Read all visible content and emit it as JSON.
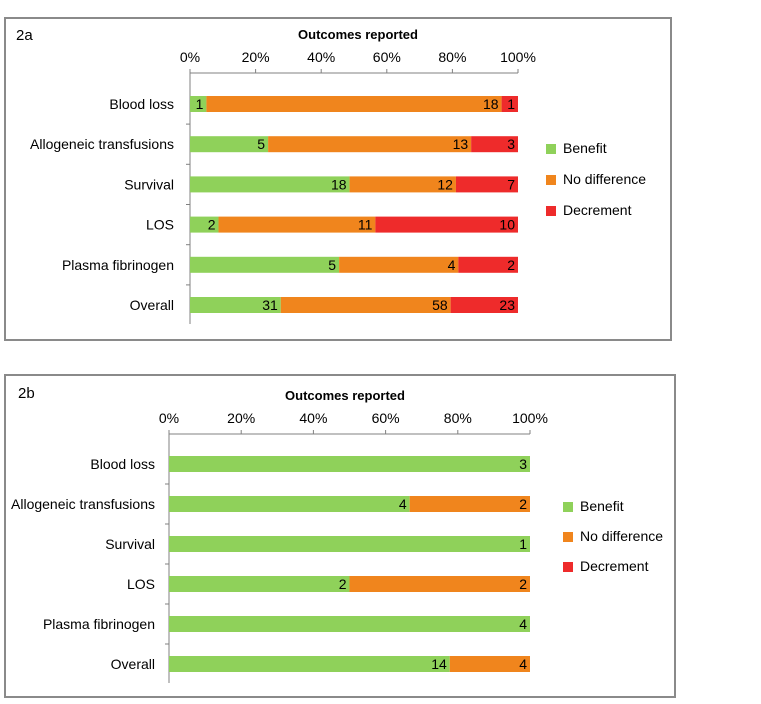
{
  "colors": {
    "benefit": "#8fd15a",
    "no_difference": "#f0851d",
    "decrement": "#ee2b2b"
  },
  "chart_data": [
    {
      "panel_label": "2a",
      "type": "bar",
      "orientation": "horizontal",
      "stacked": "percent",
      "title": "Outcomes reported",
      "x_ticks": [
        "0%",
        "20%",
        "40%",
        "60%",
        "80%",
        "100%"
      ],
      "categories": [
        "Blood loss",
        "Allogeneic transfusions",
        "Survival",
        "LOS",
        "Plasma fibrinogen",
        "Overall"
      ],
      "series": [
        {
          "name": "Benefit",
          "values": [
            1,
            5,
            18,
            2,
            5,
            31
          ],
          "color": "#8fd15a"
        },
        {
          "name": "No difference",
          "values": [
            18,
            13,
            12,
            11,
            4,
            58
          ],
          "color": "#f0851d"
        },
        {
          "name": "Decrement",
          "values": [
            1,
            3,
            7,
            10,
            2,
            23
          ],
          "color": "#ee2b2b"
        }
      ],
      "legend": [
        "Benefit",
        "No difference",
        "Decrement"
      ],
      "legend_position": "right",
      "xlim": [
        0,
        100
      ]
    },
    {
      "panel_label": "2b",
      "type": "bar",
      "orientation": "horizontal",
      "stacked": "percent",
      "title": "Outcomes reported",
      "x_ticks": [
        "0%",
        "20%",
        "40%",
        "60%",
        "80%",
        "100%"
      ],
      "categories": [
        "Blood loss",
        "Allogeneic transfusions",
        "Survival",
        "LOS",
        "Plasma fibrinogen",
        "Overall"
      ],
      "series": [
        {
          "name": "Benefit",
          "values": [
            3,
            4,
            1,
            2,
            4,
            14
          ],
          "color": "#8fd15a"
        },
        {
          "name": "No difference",
          "values": [
            0,
            2,
            0,
            2,
            0,
            4
          ],
          "color": "#f0851d"
        },
        {
          "name": "Decrement",
          "values": [
            0,
            0,
            0,
            0,
            0,
            0
          ],
          "color": "#ee2b2b"
        }
      ],
      "legend": [
        "Benefit",
        "No difference",
        "Decrement"
      ],
      "legend_position": "right",
      "xlim": [
        0,
        100
      ]
    }
  ]
}
